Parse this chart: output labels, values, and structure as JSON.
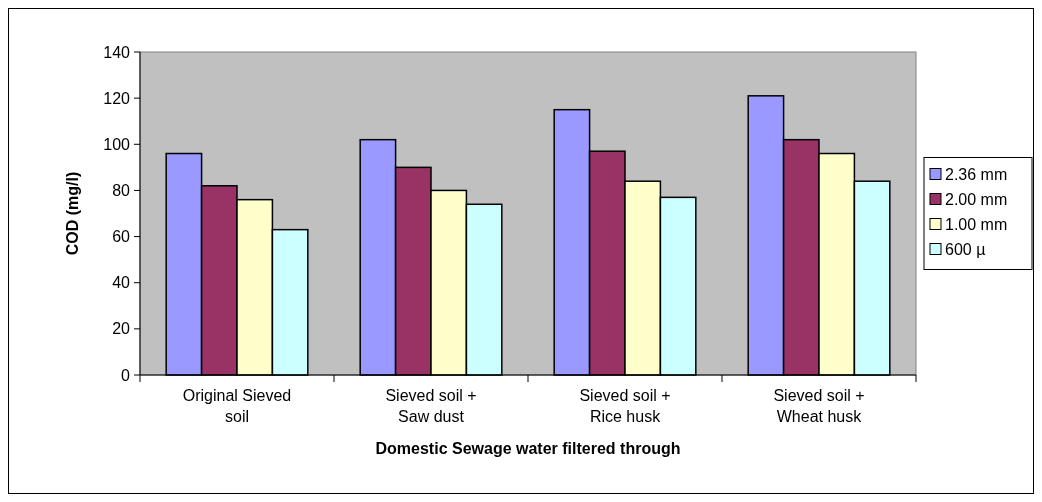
{
  "chart_data": {
    "type": "bar",
    "xlabel": "Domestic Sewage water filtered through",
    "ylabel": "COD (mg/l)",
    "categories": [
      "Original Sieved soil",
      "Sieved soil + Saw dust",
      "Sieved soil + Rice husk",
      "Sieved soil + Wheat husk"
    ],
    "series": [
      {
        "name": "2.36 mm",
        "color": "#9999ff",
        "values": [
          96,
          102,
          115,
          121
        ]
      },
      {
        "name": "2.00 mm",
        "color": "#993366",
        "values": [
          82,
          90,
          97,
          102
        ]
      },
      {
        "name": "1.00 mm",
        "color": "#ffffcc",
        "values": [
          76,
          80,
          84,
          96
        ]
      },
      {
        "name": "600 µ",
        "color": "#ccffff",
        "values": [
          63,
          74,
          77,
          84
        ]
      }
    ],
    "ylim": [
      0,
      140
    ],
    "yticks": [
      0,
      20,
      40,
      60,
      80,
      100,
      120,
      140
    ],
    "grid": false,
    "legend": "right"
  }
}
